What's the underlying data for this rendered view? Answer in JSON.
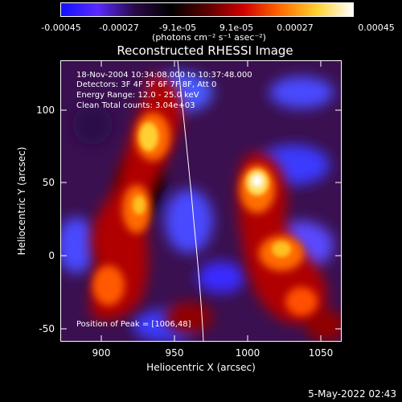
{
  "colorbar": {
    "ticks": [
      "-0.00045",
      "-0.00027",
      "-9.1e-05",
      "9.1e-05",
      "0.00027",
      "0.00045"
    ],
    "units": "(photons cm⁻² s⁻¹ asec⁻²)",
    "stops": [
      "#1010ff",
      "#5a2aff",
      "#2a0a4a",
      "#000000",
      "#5a0000",
      "#d00000",
      "#ff6a00",
      "#ffd030",
      "#ffffff"
    ]
  },
  "title": "Reconstructed RHESSI Image",
  "info": {
    "time_range": "18-Nov-2004 10:34:08.000 to 10:37:48.000",
    "detectors": "Detectors: 3F 4F 5F 6F 7F 8F, Att 0",
    "energy_range": "Energy Range: 12.0 - 25.0 keV",
    "method_counts": "Clean     Total counts: 3.04e+03",
    "peak": "Position of Peak = [1006,48]"
  },
  "axes": {
    "xlabel": "Heliocentric X (arcsec)",
    "ylabel": "Heliocentric Y (arcsec)",
    "xticks": [
      "900",
      "950",
      "1000",
      "1050"
    ],
    "yticks": [
      "100",
      "50",
      "0",
      "-50"
    ],
    "xlim": [
      870,
      1062
    ],
    "ylim": [
      -55,
      131
    ]
  },
  "timestamp": "5-May-2022 02:43"
}
